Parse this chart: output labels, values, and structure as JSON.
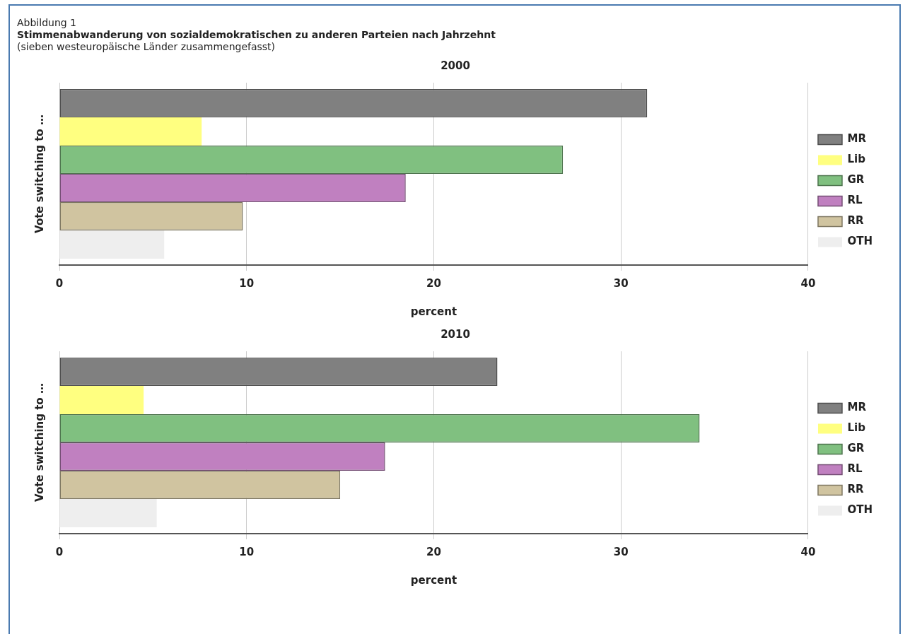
{
  "chart_data": [
    {
      "type": "bar",
      "orientation": "horizontal",
      "title": "2000",
      "xlabel": "percent",
      "ylabel": "Vote switching to …",
      "annotations": [
        "Abbildung 1",
        "Stimmenabwanderung von sozialdemokratischen zu anderen Parteien nach Jahrzehnt",
        "(sieben westeuropäische Länder zusammengefasst)"
      ],
      "categories": [
        null
      ],
      "series": [
        {
          "name": "MR",
          "color": "#808080",
          "values": [
            31.4
          ]
        },
        {
          "name": "Lib",
          "color": "#ffff80",
          "values": [
            7.6
          ]
        },
        {
          "name": "GR",
          "color": "#80c080",
          "values": [
            26.9
          ]
        },
        {
          "name": "RL",
          "color": "#c080c0",
          "values": [
            18.5
          ]
        },
        {
          "name": "RR",
          "color": "#d0c4a0",
          "values": [
            9.8
          ]
        },
        {
          "name": "OTH",
          "color": "#eeeeee",
          "values": [
            5.6
          ]
        }
      ],
      "xlim": [
        0,
        40
      ],
      "xticks": [
        0,
        10,
        20,
        30,
        40
      ],
      "grid": "x",
      "legend": "right"
    },
    {
      "type": "bar",
      "orientation": "horizontal",
      "title": "2010",
      "xlabel": "percent",
      "ylabel": "Vote switching to …",
      "categories": [
        null
      ],
      "series": [
        {
          "name": "MR",
          "color": "#808080",
          "values": [
            23.4
          ]
        },
        {
          "name": "Lib",
          "color": "#ffff80",
          "values": [
            4.5
          ]
        },
        {
          "name": "GR",
          "color": "#80c080",
          "values": [
            34.2
          ]
        },
        {
          "name": "RL",
          "color": "#c080c0",
          "values": [
            17.4
          ]
        },
        {
          "name": "RR",
          "color": "#d0c4a0",
          "values": [
            15.0
          ]
        },
        {
          "name": "OTH",
          "color": "#eeeeee",
          "values": [
            5.2
          ]
        }
      ],
      "xlim": [
        0,
        40
      ],
      "xticks": [
        0,
        10,
        20,
        30,
        40
      ],
      "grid": "x",
      "legend": "right"
    }
  ]
}
